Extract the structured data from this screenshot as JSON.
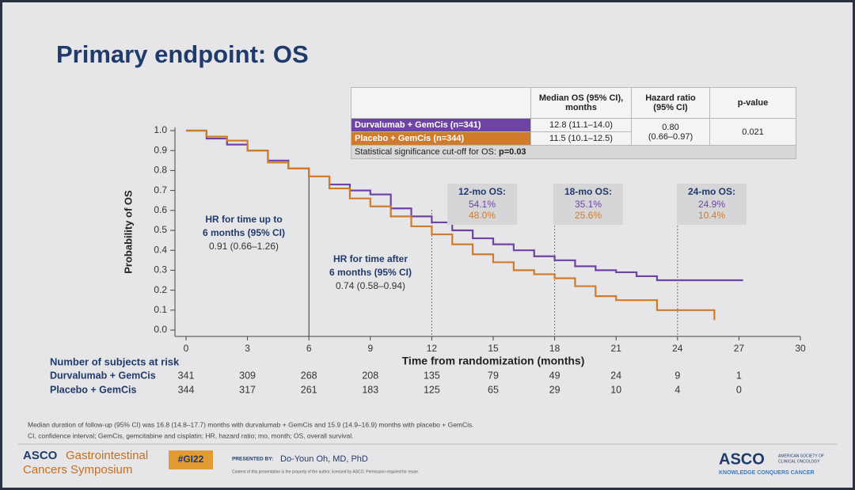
{
  "header": {
    "title": "Primary endpoint: OS"
  },
  "summary_table": {
    "headers": [
      "Median OS (95% CI), months",
      "Hazard ratio (95% CI)",
      "p-value"
    ],
    "rows": [
      {
        "name": "Durvalumab + GemCis (n=341)",
        "median": "12.8 (11.1–14.0)"
      },
      {
        "name": "Placebo + GemCis (n=344)",
        "median": "11.5 (10.1–12.5)"
      }
    ],
    "hazard_ratio": [
      "0.80",
      "(0.66–0.97)"
    ],
    "p_value": "0.021",
    "note": "Statistical significance cut-off for OS:",
    "note_value": "p=0.03"
  },
  "chart_data": {
    "type": "step",
    "xlabel": "Time from randomization (months)",
    "ylabel": "Probability of OS",
    "xlim": [
      0,
      30
    ],
    "ylim": [
      0,
      1
    ],
    "xticks": [
      0,
      3,
      6,
      9,
      12,
      15,
      18,
      21,
      24,
      27,
      30
    ],
    "yticks": [
      {
        "value": 0,
        "label": "0.0"
      },
      0.1,
      0.2,
      0.3,
      0.4,
      0.5,
      0.6,
      0.7,
      0.8,
      0.9,
      {
        "value": 1,
        "label": "1.0"
      }
    ],
    "series": [
      {
        "name": "Durvalumab + GemCis",
        "color": "#6e44a3",
        "x": [
          0,
          1,
          2,
          3,
          4,
          5,
          6,
          7,
          8,
          9,
          10,
          11,
          12,
          13,
          14,
          15,
          16,
          17,
          18,
          19,
          20,
          21,
          22,
          23,
          24,
          25,
          26,
          27.2
        ],
        "values": [
          1,
          0.96,
          0.93,
          0.9,
          0.85,
          0.81,
          0.77,
          0.73,
          0.7,
          0.68,
          0.61,
          0.57,
          0.54,
          0.5,
          0.46,
          0.43,
          0.4,
          0.37,
          0.35,
          0.32,
          0.3,
          0.29,
          0.27,
          0.25,
          0.25,
          0.25,
          0.25,
          0.25
        ]
      },
      {
        "name": "Placebo + GemCis",
        "color": "#d17a2a",
        "x": [
          0,
          1,
          2,
          3,
          4,
          5,
          6,
          7,
          8,
          9,
          10,
          11,
          12,
          13,
          14,
          15,
          16,
          17,
          18,
          19,
          20,
          21,
          22,
          23,
          24,
          25,
          25.8
        ],
        "values": [
          1,
          0.97,
          0.95,
          0.9,
          0.84,
          0.81,
          0.77,
          0.71,
          0.66,
          0.62,
          0.57,
          0.52,
          0.48,
          0.43,
          0.38,
          0.34,
          0.3,
          0.28,
          0.26,
          0.22,
          0.17,
          0.15,
          0.15,
          0.1,
          0.1,
          0.1,
          0.05
        ]
      }
    ],
    "hr_annotations": [
      {
        "x": 6,
        "lines": [
          "HR for time up to",
          "6 months (95% CI)"
        ],
        "value": "0.91 (0.66–1.26)"
      },
      {
        "lines": [
          "HR for time after",
          "6 months (95% CI)"
        ],
        "value": "0.74 (0.58–0.94)"
      }
    ],
    "landmarks": [
      {
        "x": 12,
        "label": "12-mo OS:",
        "values": [
          "54.1%",
          "48.0%"
        ]
      },
      {
        "x": 18,
        "label": "18-mo OS:",
        "values": [
          "35.1%",
          "25.6%"
        ]
      },
      {
        "x": 24,
        "label": "24-mo OS:",
        "values": [
          "24.9%",
          "10.4%"
        ]
      }
    ]
  },
  "risk_table": {
    "title": "Number of subjects at risk",
    "rows": [
      {
        "name": "Durvalumab + GemCis",
        "values": [
          "341",
          "309",
          "268",
          "208",
          "135",
          "79",
          "49",
          "24",
          "9",
          "1"
        ]
      },
      {
        "name": "Placebo + GemCis",
        "values": [
          "344",
          "317",
          "261",
          "183",
          "125",
          "65",
          "29",
          "10",
          "4",
          "0"
        ]
      }
    ]
  },
  "footnotes": [
    "Median duration of follow-up (95% CI) was 16.8 (14.8–17.7) months with durvalumab + GemCis and 15.9 (14.9–16.9) months with placebo + GemCis.",
    "CI, confidence interval; GemCis, gemcitabine and cisplatin; HR, hazard ratio; mo, month; OS, overall survival."
  ],
  "footer": {
    "meeting_1": "ASCO",
    "meeting_2": "Gastrointestinal",
    "meeting_3": "Cancers Symposium",
    "hashtag": "#GI22",
    "presented_by": "PRESENTED BY:",
    "presenter": "Do-Youn Oh, MD, PhD",
    "copyright": "Content of this presentation is the property of the author, licensed by ASCO. Permission required for reuse.",
    "asco": "ASCO",
    "asco_sub_1": "AMERICAN SOCIETY OF",
    "asco_sub_2": "CLINICAL ONCOLOGY",
    "tagline": "KNOWLEDGE CONQUERS CANCER"
  }
}
